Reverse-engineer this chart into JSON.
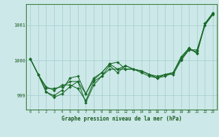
{
  "xlabel": "Graphe pression niveau de la mer (hPa)",
  "bg_color": "#cce8e8",
  "grid_color": "#aacfcf",
  "line_color": "#1a6b2a",
  "ylim": [
    998.6,
    1001.6
  ],
  "xlim": [
    -0.5,
    23.5
  ],
  "yticks": [
    999,
    1000,
    1001
  ],
  "xtick_labels": [
    "0",
    "1",
    "2",
    "3",
    "4",
    "5",
    "6",
    "7",
    "8",
    "9",
    "10",
    "11",
    "12",
    "13",
    "14",
    "15",
    "16",
    "17",
    "18",
    "19",
    "20",
    "21",
    "22",
    "23"
  ],
  "series": [
    [
      1000.05,
      999.6,
      999.25,
      999.15,
      999.3,
      999.3,
      999.2,
      998.85,
      999.4,
      999.55,
      999.75,
      999.75,
      999.75,
      999.75,
      999.7,
      999.6,
      999.55,
      999.6,
      999.65,
      1000.1,
      1000.35,
      1000.2,
      1001.0,
      1001.3
    ],
    [
      1000.05,
      999.6,
      999.1,
      998.95,
      999.05,
      999.25,
      999.4,
      998.8,
      999.3,
      999.55,
      999.85,
      999.65,
      999.85,
      999.75,
      999.65,
      999.55,
      999.5,
      999.55,
      999.65,
      1000.05,
      1000.35,
      1000.2,
      1001.05,
      1001.35
    ],
    [
      1000.05,
      999.6,
      999.1,
      999.0,
      999.15,
      999.5,
      999.55,
      999.05,
      999.5,
      999.65,
      999.9,
      999.95,
      999.75,
      999.75,
      999.7,
      999.6,
      999.5,
      999.6,
      999.6,
      1000.0,
      1000.3,
      1000.3,
      1001.0,
      1001.35
    ],
    [
      1000.05,
      999.6,
      999.2,
      999.2,
      999.25,
      999.4,
      999.4,
      999.05,
      999.45,
      999.65,
      999.9,
      999.75,
      999.85,
      999.75,
      999.7,
      999.6,
      999.5,
      999.6,
      999.65,
      1000.05,
      1000.3,
      1000.25,
      1001.05,
      1001.3
    ]
  ]
}
